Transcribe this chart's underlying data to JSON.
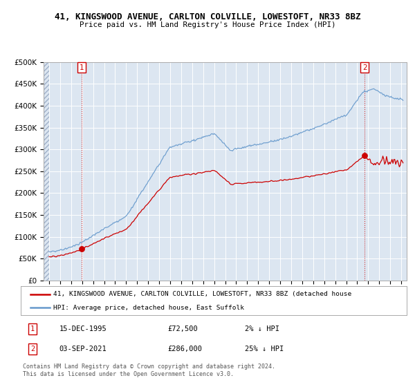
{
  "title": "41, KINGSWOOD AVENUE, CARLTON COLVILLE, LOWESTOFT, NR33 8BZ",
  "subtitle": "Price paid vs. HM Land Registry's House Price Index (HPI)",
  "ylim": [
    0,
    500000
  ],
  "yticks": [
    0,
    50000,
    100000,
    150000,
    200000,
    250000,
    300000,
    350000,
    400000,
    450000,
    500000
  ],
  "ytick_labels": [
    "£0",
    "£50K",
    "£100K",
    "£150K",
    "£200K",
    "£250K",
    "£300K",
    "£350K",
    "£400K",
    "£450K",
    "£500K"
  ],
  "xlim_start": 1992.5,
  "xlim_end": 2025.5,
  "hpi_color": "#6699cc",
  "price_color": "#cc0000",
  "point1_x": 1995.96,
  "point1_y": 72500,
  "point2_x": 2021.67,
  "point2_y": 286000,
  "legend_line1": "41, KINGSWOOD AVENUE, CARLTON COLVILLE, LOWESTOFT, NR33 8BZ (detached house",
  "legend_line2": "HPI: Average price, detached house, East Suffolk",
  "table_row1_num": "1",
  "table_row1_date": "15-DEC-1995",
  "table_row1_price": "£72,500",
  "table_row1_hpi": "2% ↓ HPI",
  "table_row2_num": "2",
  "table_row2_date": "03-SEP-2021",
  "table_row2_price": "£286,000",
  "table_row2_hpi": "25% ↓ HPI",
  "footer": "Contains HM Land Registry data © Crown copyright and database right 2024.\nThis data is licensed under the Open Government Licence v3.0.",
  "bg_color": "#dce6f1",
  "hatch_color": "#b8c8dc"
}
